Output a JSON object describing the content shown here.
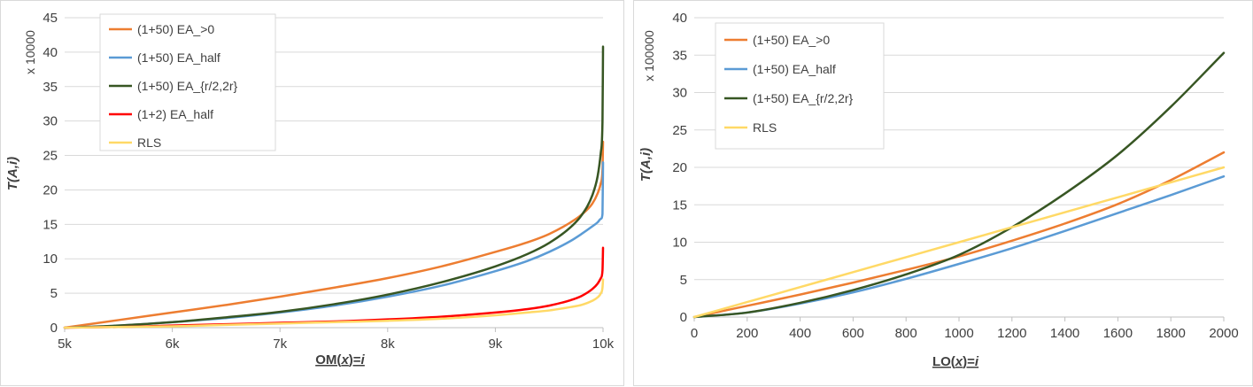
{
  "chart_data": [
    {
      "type": "line",
      "xlabel": "OM(x)=i",
      "xlabel_parts": [
        "OM(",
        "x",
        ")=",
        "i"
      ],
      "ylabel": "T(A,i)",
      "ylabel_parts": [
        "T(A,",
        "i",
        ")"
      ],
      "y_unit": "x 10000",
      "xlim": [
        5000,
        10000
      ],
      "ylim": [
        0,
        45
      ],
      "x_ticks": [
        5000,
        6000,
        7000,
        8000,
        9000,
        10000
      ],
      "x_tick_labels": [
        "5k",
        "6k",
        "7k",
        "8k",
        "9k",
        "10k"
      ],
      "y_ticks": [
        0,
        5,
        10,
        15,
        20,
        25,
        30,
        35,
        40,
        45
      ],
      "y_tick_labels": [
        "0",
        "5",
        "10",
        "15",
        "20",
        "25",
        "30",
        "35",
        "40",
        "45"
      ],
      "gridlines": "horizontal",
      "legend_position": "top-left",
      "series": [
        {
          "name": "(1+50) EA_>0",
          "color": "#ed7d31",
          "x": [
            5000,
            5500,
            6000,
            6500,
            7000,
            7500,
            8000,
            8500,
            9000,
            9300,
            9500,
            9700,
            9800,
            9900,
            9950,
            9980,
            9995,
            10000
          ],
          "y": [
            0,
            1.1,
            2.2,
            3.3,
            4.5,
            5.8,
            7.2,
            8.9,
            11.0,
            12.4,
            13.6,
            15.3,
            16.4,
            18.0,
            19.5,
            21.0,
            23.0,
            27.0
          ]
        },
        {
          "name": "(1+50) EA_half",
          "color": "#5b9bd5",
          "x": [
            5000,
            5500,
            6000,
            6500,
            7000,
            7500,
            8000,
            8500,
            9000,
            9300,
            9500,
            9700,
            9800,
            9900,
            9950,
            9980,
            9995,
            10000
          ],
          "y": [
            0,
            0.3,
            0.8,
            1.4,
            2.2,
            3.2,
            4.5,
            6.1,
            8.2,
            9.7,
            11.0,
            12.6,
            13.6,
            14.7,
            15.3,
            15.8,
            16.5,
            24.0
          ]
        },
        {
          "name": "(1+50) EA_{r/2,2r}",
          "color": "#375623",
          "x": [
            5000,
            5500,
            6000,
            6500,
            7000,
            7500,
            8000,
            8500,
            9000,
            9300,
            9500,
            9700,
            9800,
            9900,
            9950,
            9980,
            9995,
            10000
          ],
          "y": [
            0,
            0.3,
            0.8,
            1.5,
            2.3,
            3.4,
            4.8,
            6.6,
            8.9,
            10.7,
            12.3,
            14.6,
            16.3,
            19.2,
            22.0,
            25.5,
            30.0,
            40.8
          ]
        },
        {
          "name": "(1+2) EA_half",
          "color": "#ff0000",
          "x": [
            5000,
            5500,
            6000,
            6500,
            7000,
            7500,
            8000,
            8500,
            9000,
            9300,
            9500,
            9700,
            9800,
            9900,
            9950,
            9980,
            9995,
            10000
          ],
          "y": [
            0,
            0.1,
            0.3,
            0.5,
            0.7,
            0.9,
            1.2,
            1.6,
            2.2,
            2.7,
            3.2,
            4.0,
            4.6,
            5.6,
            6.4,
            7.2,
            8.3,
            11.6
          ]
        },
        {
          "name": "RLS",
          "color": "#ffd966",
          "x": [
            5000,
            5500,
            6000,
            6500,
            7000,
            7500,
            8000,
            8500,
            9000,
            9300,
            9500,
            9700,
            9800,
            9900,
            9950,
            9980,
            9995,
            10000
          ],
          "y": [
            0,
            0.1,
            0.2,
            0.4,
            0.6,
            0.8,
            1.0,
            1.3,
            1.8,
            2.2,
            2.5,
            3.0,
            3.3,
            3.9,
            4.4,
            5.0,
            5.8,
            7.0
          ]
        }
      ]
    },
    {
      "type": "line",
      "xlabel": "LO(x)=i",
      "xlabel_parts": [
        "LO(",
        "x",
        ")=",
        "i"
      ],
      "ylabel": "T(A,i)",
      "ylabel_parts": [
        "T(A,",
        "i",
        ")"
      ],
      "y_unit": "x 100000",
      "xlim": [
        0,
        2000
      ],
      "ylim": [
        0,
        40
      ],
      "x_ticks": [
        0,
        200,
        400,
        600,
        800,
        1000,
        1200,
        1400,
        1600,
        1800,
        2000
      ],
      "x_tick_labels": [
        "0",
        "200",
        "400",
        "600",
        "800",
        "1000",
        "1200",
        "1400",
        "1600",
        "1800",
        "2000"
      ],
      "y_ticks": [
        0,
        5,
        10,
        15,
        20,
        25,
        30,
        35,
        40
      ],
      "y_tick_labels": [
        "0",
        "5",
        "10",
        "15",
        "20",
        "25",
        "30",
        "35",
        "40"
      ],
      "gridlines": "horizontal",
      "legend_position": "top-left",
      "series": [
        {
          "name": "(1+50) EA_>0",
          "color": "#ed7d31",
          "x": [
            0,
            200,
            400,
            600,
            800,
            1000,
            1200,
            1400,
            1600,
            1800,
            2000
          ],
          "y": [
            0,
            1.5,
            3.0,
            4.6,
            6.3,
            8.1,
            10.2,
            12.5,
            15.1,
            18.3,
            22.0
          ]
        },
        {
          "name": "(1+50) EA_half",
          "color": "#5b9bd5",
          "x": [
            0,
            200,
            400,
            600,
            800,
            1000,
            1200,
            1400,
            1600,
            1800,
            2000
          ],
          "y": [
            0,
            0.6,
            1.8,
            3.3,
            5.1,
            7.1,
            9.2,
            11.5,
            13.9,
            16.3,
            18.8
          ]
        },
        {
          "name": "(1+50) EA_{r/2,2r}",
          "color": "#375623",
          "x": [
            0,
            200,
            400,
            600,
            800,
            1000,
            1200,
            1400,
            1600,
            1800,
            2000
          ],
          "y": [
            0,
            0.6,
            1.9,
            3.6,
            5.7,
            8.3,
            12.0,
            16.5,
            21.7,
            28.1,
            35.3
          ]
        },
        {
          "name": "RLS",
          "color": "#ffd966",
          "x": [
            0,
            200,
            400,
            600,
            800,
            1000,
            1200,
            1400,
            1600,
            1800,
            2000
          ],
          "y": [
            0,
            2.0,
            4.0,
            6.0,
            8.0,
            10.0,
            12.0,
            14.0,
            16.0,
            18.0,
            20.0
          ]
        }
      ]
    }
  ]
}
